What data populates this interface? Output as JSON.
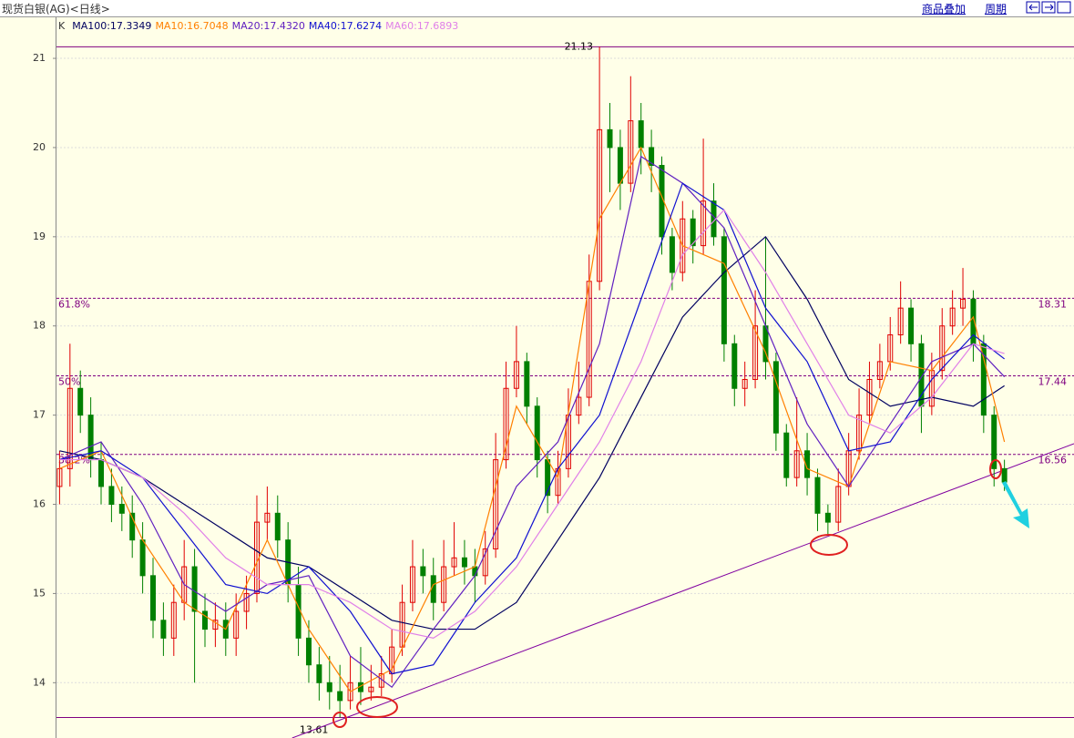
{
  "header": {
    "title": "现货白银(AG)<日线>",
    "buttons": [
      "商品叠加",
      "周期"
    ]
  },
  "chart_data": {
    "type": "candlestick",
    "legend_prefix": "K",
    "xlim": [
      -0.3,
      97.7
    ],
    "ylim": [
      13.38,
      21.45
    ],
    "yticks": [
      14,
      15,
      16,
      17,
      18,
      19,
      20,
      21
    ],
    "grid": true,
    "up_color": "#e00000",
    "down_color": "#008000",
    "candles": [
      [
        16.2,
        16.6,
        16.0,
        16.4
      ],
      [
        16.4,
        17.8,
        16.2,
        17.3
      ],
      [
        17.3,
        17.5,
        16.8,
        17.0
      ],
      [
        17.0,
        17.2,
        16.3,
        16.5
      ],
      [
        16.5,
        16.7,
        16.0,
        16.2
      ],
      [
        16.2,
        16.4,
        15.8,
        16.0
      ],
      [
        16.0,
        16.2,
        15.7,
        15.9
      ],
      [
        15.9,
        16.1,
        15.4,
        15.6
      ],
      [
        15.6,
        15.8,
        15.0,
        15.2
      ],
      [
        15.2,
        15.4,
        14.5,
        14.7
      ],
      [
        14.7,
        14.9,
        14.3,
        14.5
      ],
      [
        14.5,
        15.1,
        14.3,
        14.9
      ],
      [
        14.9,
        15.6,
        14.7,
        15.3
      ],
      [
        15.3,
        15.5,
        14.0,
        14.8
      ],
      [
        14.8,
        15.0,
        14.4,
        14.6
      ],
      [
        14.6,
        14.9,
        14.4,
        14.7
      ],
      [
        14.7,
        14.9,
        14.3,
        14.5
      ],
      [
        14.5,
        15.0,
        14.3,
        14.8
      ],
      [
        14.8,
        15.2,
        14.6,
        15.0
      ],
      [
        15.0,
        16.1,
        14.9,
        15.8
      ],
      [
        15.8,
        16.2,
        15.6,
        15.9
      ],
      [
        15.9,
        16.1,
        15.4,
        15.6
      ],
      [
        15.6,
        15.8,
        14.9,
        15.1
      ],
      [
        15.1,
        15.3,
        14.3,
        14.5
      ],
      [
        14.5,
        14.7,
        14.0,
        14.2
      ],
      [
        14.2,
        14.4,
        13.8,
        14.0
      ],
      [
        14.0,
        14.3,
        13.7,
        13.9
      ],
      [
        13.9,
        14.2,
        13.61,
        13.8
      ],
      [
        13.8,
        14.3,
        13.7,
        14.0
      ],
      [
        14.0,
        14.4,
        13.75,
        13.9
      ],
      [
        13.9,
        14.2,
        13.8,
        13.95
      ],
      [
        13.95,
        14.3,
        13.85,
        14.1
      ],
      [
        14.1,
        14.6,
        14.0,
        14.4
      ],
      [
        14.4,
        15.1,
        14.3,
        14.9
      ],
      [
        14.9,
        15.6,
        14.8,
        15.3
      ],
      [
        15.3,
        15.5,
        15.0,
        15.2
      ],
      [
        15.2,
        15.4,
        14.7,
        14.9
      ],
      [
        14.9,
        15.6,
        14.8,
        15.3
      ],
      [
        15.3,
        15.8,
        15.2,
        15.4
      ],
      [
        15.4,
        15.6,
        15.1,
        15.3
      ],
      [
        15.3,
        15.5,
        14.9,
        15.2
      ],
      [
        15.2,
        15.7,
        15.1,
        15.5
      ],
      [
        15.5,
        16.8,
        15.4,
        16.5
      ],
      [
        16.5,
        17.6,
        16.4,
        17.3
      ],
      [
        17.3,
        18.0,
        17.2,
        17.6
      ],
      [
        17.6,
        17.7,
        16.9,
        17.1
      ],
      [
        17.1,
        17.2,
        16.3,
        16.5
      ],
      [
        16.5,
        16.6,
        15.9,
        16.1
      ],
      [
        16.1,
        16.6,
        16.0,
        16.4
      ],
      [
        16.4,
        17.3,
        16.3,
        17.0
      ],
      [
        17.0,
        17.6,
        16.9,
        17.2
      ],
      [
        17.2,
        18.8,
        17.1,
        18.5
      ],
      [
        18.5,
        21.13,
        18.4,
        20.2
      ],
      [
        20.2,
        20.5,
        19.5,
        20.0
      ],
      [
        20.0,
        20.2,
        19.3,
        19.6
      ],
      [
        19.6,
        20.8,
        19.5,
        20.3
      ],
      [
        20.3,
        20.5,
        19.7,
        20.0
      ],
      [
        20.0,
        20.2,
        19.5,
        19.8
      ],
      [
        19.8,
        19.9,
        18.8,
        19.0
      ],
      [
        19.0,
        19.1,
        18.4,
        18.6
      ],
      [
        18.6,
        19.4,
        18.5,
        19.2
      ],
      [
        19.2,
        19.3,
        18.7,
        18.9
      ],
      [
        18.9,
        20.1,
        18.8,
        19.4
      ],
      [
        19.4,
        19.6,
        18.9,
        19.0
      ],
      [
        19.0,
        19.1,
        17.6,
        17.8
      ],
      [
        17.8,
        17.9,
        17.1,
        17.3
      ],
      [
        17.3,
        17.6,
        17.1,
        17.4
      ],
      [
        17.4,
        18.4,
        17.3,
        18.0
      ],
      [
        18.0,
        19.0,
        17.4,
        17.6
      ],
      [
        17.6,
        17.7,
        16.6,
        16.8
      ],
      [
        16.8,
        16.9,
        16.2,
        16.3
      ],
      [
        16.3,
        17.2,
        16.2,
        16.6
      ],
      [
        16.6,
        16.8,
        16.1,
        16.3
      ],
      [
        16.3,
        16.4,
        15.7,
        15.9
      ],
      [
        15.9,
        16.0,
        15.65,
        15.8
      ],
      [
        15.8,
        16.4,
        15.7,
        16.2
      ],
      [
        16.2,
        16.8,
        16.1,
        16.6
      ],
      [
        16.6,
        17.3,
        16.5,
        17.0
      ],
      [
        17.0,
        17.6,
        16.9,
        17.4
      ],
      [
        17.4,
        17.8,
        17.3,
        17.6
      ],
      [
        17.6,
        18.1,
        17.5,
        17.9
      ],
      [
        17.9,
        18.5,
        17.8,
        18.2
      ],
      [
        18.2,
        18.3,
        17.6,
        17.8
      ],
      [
        17.8,
        17.9,
        16.8,
        17.1
      ],
      [
        17.1,
        17.7,
        17.0,
        17.5
      ],
      [
        17.5,
        18.2,
        17.4,
        18.0
      ],
      [
        18.0,
        18.4,
        17.9,
        18.2
      ],
      [
        18.2,
        18.65,
        18.0,
        18.3
      ],
      [
        18.3,
        18.4,
        17.6,
        17.8
      ],
      [
        17.8,
        17.9,
        16.8,
        17.0
      ],
      [
        17.0,
        17.1,
        16.2,
        16.4
      ],
      [
        16.4,
        16.5,
        16.15,
        16.25
      ]
    ],
    "series": [
      {
        "name": "MA100:17.3349",
        "color": "#000060",
        "x": [
          0,
          4,
          8,
          12,
          16,
          20,
          24,
          28,
          32,
          36,
          40,
          44,
          48,
          52,
          56,
          60,
          64,
          68,
          72,
          76,
          80,
          84,
          88,
          91
        ],
        "values": [
          16.6,
          16.5,
          16.3,
          16.0,
          15.7,
          15.4,
          15.3,
          15.0,
          14.7,
          14.6,
          14.6,
          14.9,
          15.6,
          16.3,
          17.2,
          18.1,
          18.6,
          19.0,
          18.3,
          17.4,
          17.1,
          17.2,
          17.1,
          17.33
        ]
      },
      {
        "name": "MA10:16.7048",
        "color": "#ff8000",
        "x": [
          0,
          4,
          8,
          12,
          16,
          20,
          24,
          28,
          32,
          36,
          40,
          44,
          48,
          52,
          56,
          60,
          64,
          68,
          72,
          76,
          80,
          84,
          88,
          91
        ],
        "values": [
          16.4,
          16.6,
          15.6,
          14.9,
          14.6,
          15.6,
          14.6,
          13.9,
          14.15,
          15.1,
          15.3,
          17.1,
          16.3,
          19.2,
          20.0,
          18.9,
          18.7,
          17.7,
          16.4,
          16.2,
          17.6,
          17.5,
          18.1,
          16.7
        ]
      },
      {
        "name": "MA20:17.4320",
        "color": "#6020c0",
        "x": [
          0,
          4,
          8,
          12,
          16,
          20,
          24,
          28,
          32,
          36,
          40,
          44,
          48,
          52,
          56,
          60,
          64,
          68,
          72,
          76,
          80,
          84,
          88,
          91
        ],
        "values": [
          16.5,
          16.7,
          16.0,
          15.1,
          14.8,
          15.1,
          15.2,
          14.3,
          13.95,
          14.6,
          15.2,
          16.2,
          16.7,
          17.8,
          19.9,
          19.6,
          19.1,
          18.0,
          16.9,
          16.2,
          16.9,
          17.6,
          17.8,
          17.43
        ]
      },
      {
        "name": "MA40:17.6274",
        "color": "#1010d0",
        "x": [
          0,
          4,
          8,
          12,
          16,
          20,
          24,
          28,
          32,
          36,
          40,
          44,
          48,
          52,
          56,
          60,
          64,
          68,
          72,
          76,
          80,
          84,
          88,
          91
        ],
        "values": [
          16.5,
          16.6,
          16.3,
          15.7,
          15.1,
          15.0,
          15.3,
          14.8,
          14.1,
          14.2,
          14.9,
          15.4,
          16.4,
          17.0,
          18.3,
          19.6,
          19.3,
          18.2,
          17.6,
          16.6,
          16.7,
          17.4,
          17.9,
          17.63
        ]
      },
      {
        "name": "MA60:17.6893",
        "color": "#e080e8",
        "x": [
          0,
          4,
          8,
          12,
          16,
          20,
          24,
          28,
          32,
          36,
          40,
          44,
          48,
          52,
          56,
          60,
          64,
          68,
          72,
          76,
          80,
          84,
          88,
          91
        ],
        "values": [
          16.5,
          16.5,
          16.3,
          15.9,
          15.4,
          15.1,
          15.1,
          14.9,
          14.6,
          14.5,
          14.8,
          15.3,
          16.0,
          16.7,
          17.6,
          18.8,
          19.3,
          18.6,
          17.8,
          17.0,
          16.8,
          17.2,
          17.8,
          17.69
        ]
      }
    ],
    "levels": [
      {
        "label": "61.8%",
        "value": 18.31
      },
      {
        "label": "50%",
        "value": 17.44
      },
      {
        "label": "38.2%",
        "value": 16.56
      }
    ],
    "extremes": [
      {
        "label": "21.13",
        "value": 21.13,
        "x": 50
      },
      {
        "label": "13.61",
        "value": 13.61,
        "x": 24.5
      }
    ],
    "trendline": {
      "x": [
        22.4,
        97.7
      ],
      "values": [
        13.38,
        16.68
      ]
    }
  }
}
